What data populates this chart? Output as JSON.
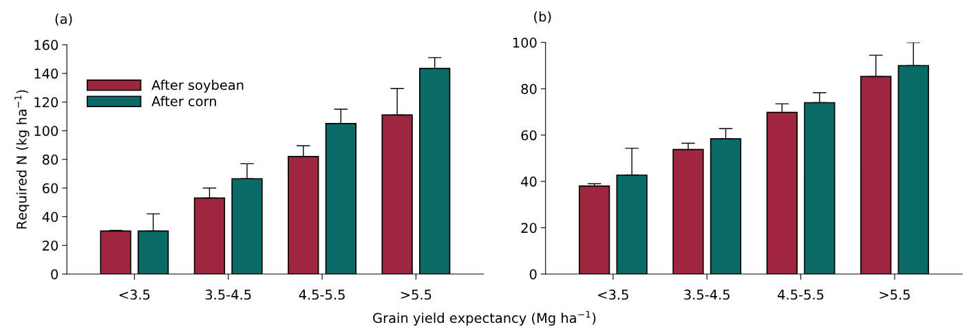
{
  "chart_data": [
    {
      "type": "bar",
      "title": "(a)",
      "ylabel": "Required N (kg ha$^{−1}$)",
      "xlabel": "Grain yield expectancy (Mg ha$^{−1}$)",
      "categories": [
        "<3.5",
        "3.5-4.5",
        "4.5-5.5",
        ">5.5"
      ],
      "series": [
        {
          "name": "After soybean",
          "color": "#a0263f",
          "values": [
            30,
            53,
            82,
            111
          ],
          "errors": [
            [
              30,
              30.5
            ],
            [
              53,
              60
            ],
            [
              82,
              89.5
            ],
            [
              111,
              129.5
            ]
          ]
        },
        {
          "name": "After corn",
          "color": "#0a6b66",
          "values": [
            30,
            66.5,
            105,
            143.5
          ],
          "errors": [
            [
              30,
              42
            ],
            [
              66.5,
              77
            ],
            [
              105,
              115
            ],
            [
              143.5,
              151
            ]
          ]
        }
      ],
      "ylim": [
        0,
        160
      ],
      "yticks": [
        0,
        20,
        40,
        60,
        80,
        100,
        120,
        140,
        160
      ],
      "legend": "top left",
      "grid": false
    },
    {
      "type": "bar",
      "title": "(b)",
      "categories": [
        "<3.5",
        "3.5-4.5",
        "4.5-5.5",
        ">5.5"
      ],
      "series": [
        {
          "color": "#a0263f",
          "values": [
            38,
            53.8,
            69.8,
            85.3
          ],
          "errors": [
            [
              38,
              39
            ],
            [
              53.8,
              56.5
            ],
            [
              69.8,
              73.5
            ],
            [
              85.3,
              94.5
            ]
          ]
        },
        {
          "color": "#0a6b66",
          "values": [
            42.7,
            58.4,
            74,
            90
          ],
          "errors": [
            [
              42.7,
              54.3
            ],
            [
              58.4,
              62.8
            ],
            [
              74,
              78.3
            ],
            [
              90,
              100
            ]
          ]
        }
      ],
      "ylim": [
        0,
        100
      ],
      "yticks": [
        0,
        20,
        40,
        60,
        80,
        100
      ],
      "legend": false,
      "grid": false
    }
  ]
}
